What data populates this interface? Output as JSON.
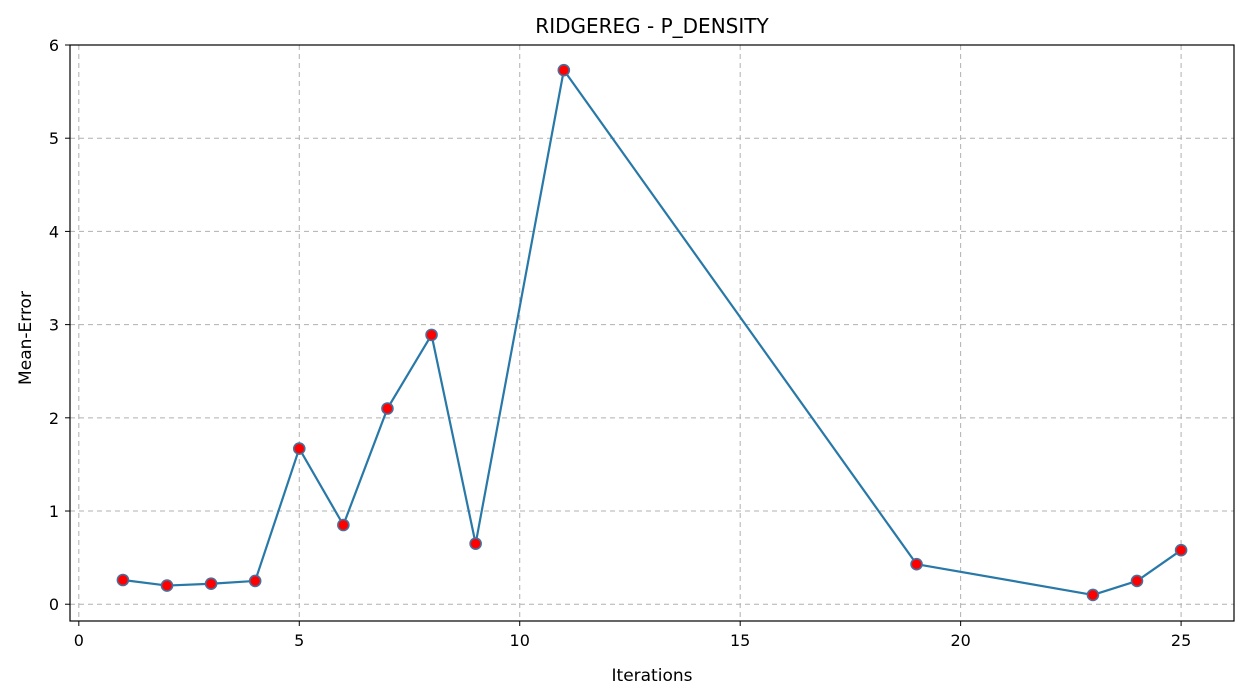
{
  "chart_data": {
    "type": "line",
    "title": "RIDGEREG - P_DENSITY",
    "xlabel": "Iterations",
    "ylabel": "Mean-Error",
    "xlim": [
      -0.2,
      26.2
    ],
    "ylim": [
      -0.18,
      6.0
    ],
    "xticks": [
      0,
      5,
      10,
      15,
      20,
      25
    ],
    "yticks": [
      0,
      1,
      2,
      3,
      4,
      5,
      6
    ],
    "grid": true,
    "series": [
      {
        "x": [
          1,
          2,
          3,
          4,
          5,
          6,
          7,
          8,
          9,
          11,
          19,
          23,
          24,
          25
        ],
        "y": [
          0.26,
          0.2,
          0.22,
          0.25,
          1.67,
          0.85,
          2.1,
          2.89,
          0.65,
          5.73,
          0.43,
          0.1,
          0.25,
          0.58
        ],
        "line_color": "#2878a8",
        "marker_fill": "#ff0000",
        "marker_edge": "#4a6f9a"
      }
    ]
  }
}
